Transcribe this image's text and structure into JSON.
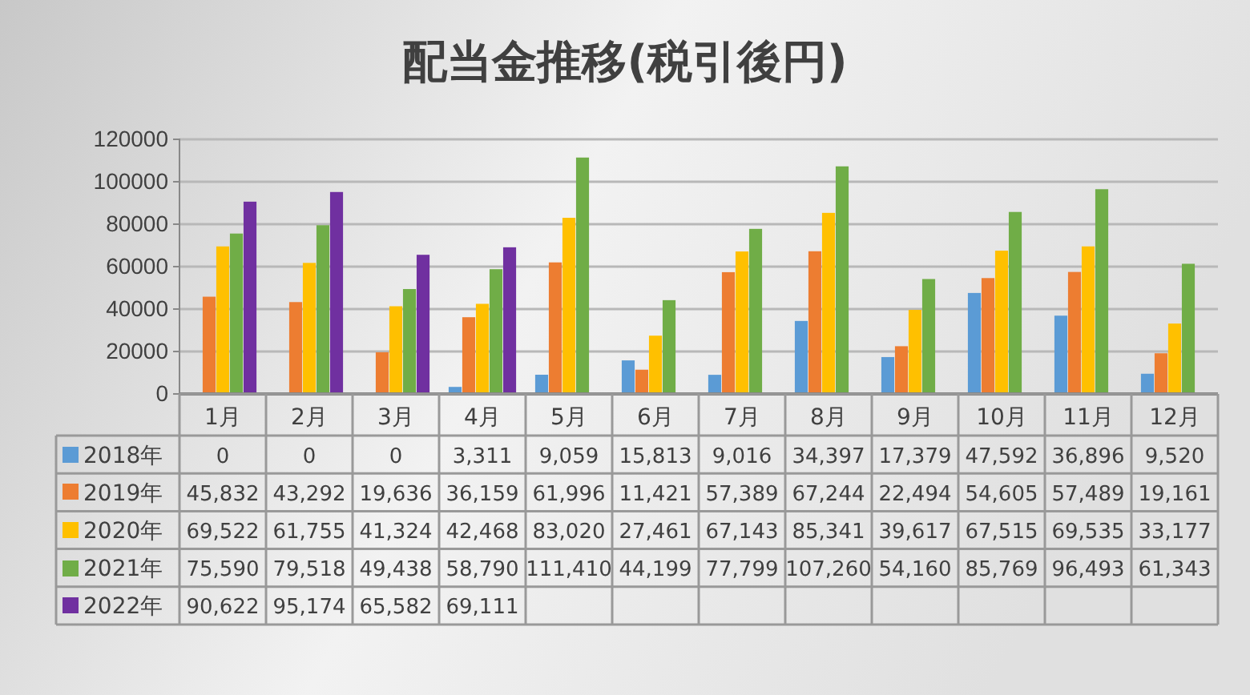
{
  "chart_data": {
    "type": "bar",
    "title": "配当金推移(税引後円)",
    "categories": [
      "1月",
      "2月",
      "3月",
      "4月",
      "5月",
      "6月",
      "7月",
      "8月",
      "9月",
      "10月",
      "11月",
      "12月"
    ],
    "series": [
      {
        "name": "2018年",
        "color": "#5b9bd5",
        "values": [
          0,
          0,
          0,
          3311,
          9059,
          15813,
          9016,
          34397,
          17379,
          47592,
          36896,
          9520
        ],
        "value_labels": [
          "0",
          "0",
          "0",
          "3,311",
          "9,059",
          "15,813",
          "9,016",
          "34,397",
          "17,379",
          "47,592",
          "36,896",
          "9,520"
        ]
      },
      {
        "name": "2019年",
        "color": "#ed7d31",
        "values": [
          45832,
          43292,
          19636,
          36159,
          61996,
          11421,
          57389,
          67244,
          22494,
          54605,
          57489,
          19161
        ],
        "value_labels": [
          "45,832",
          "43,292",
          "19,636",
          "36,159",
          "61,996",
          "11,421",
          "57,389",
          "67,244",
          "22,494",
          "54,605",
          "57,489",
          "19,161"
        ]
      },
      {
        "name": "2020年",
        "color": "#ffc000",
        "values": [
          69522,
          61755,
          41324,
          42468,
          83020,
          27461,
          67143,
          85341,
          39617,
          67515,
          69535,
          33177
        ],
        "value_labels": [
          "69,522",
          "61,755",
          "41,324",
          "42,468",
          "83,020",
          "27,461",
          "67,143",
          "85,341",
          "39,617",
          "67,515",
          "69,535",
          "33,177"
        ]
      },
      {
        "name": "2021年",
        "color": "#70ad47",
        "values": [
          75590,
          79518,
          49438,
          58790,
          111410,
          44199,
          77799,
          107260,
          54160,
          85769,
          96493,
          61343
        ],
        "value_labels": [
          "75,590",
          "79,518",
          "49,438",
          "58,790",
          "111,410",
          "44,199",
          "77,799",
          "107,260",
          "54,160",
          "85,769",
          "96,493",
          "61,343"
        ]
      },
      {
        "name": "2022年",
        "color": "#7030a0",
        "values": [
          90622,
          95174,
          65582,
          69111,
          null,
          null,
          null,
          null,
          null,
          null,
          null,
          null
        ],
        "value_labels": [
          "90,622",
          "95,174",
          "65,582",
          "69,111",
          null,
          null,
          null,
          null,
          null,
          null,
          null,
          null
        ]
      }
    ],
    "ylim": [
      0,
      120000
    ],
    "yticks": [
      0,
      20000,
      40000,
      60000,
      80000,
      100000,
      120000
    ],
    "grid": "y",
    "legend": "bottom"
  }
}
